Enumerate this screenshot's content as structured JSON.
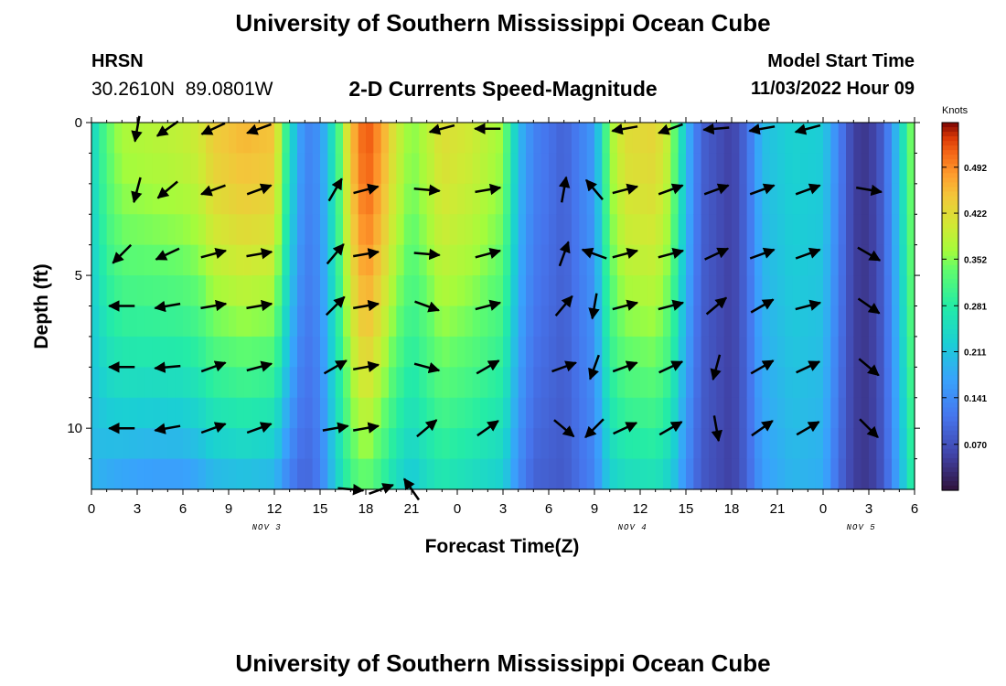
{
  "title": "University of Southern Mississippi Ocean Cube",
  "footer_title": "University of Southern Mississippi Ocean Cube",
  "station": {
    "id": "HRSN",
    "coords": "30.2610N  89.0801W"
  },
  "model": {
    "label": "Model Start Time",
    "start": "11/03/2022 Hour 09"
  },
  "chart_data": {
    "type": "heatmap",
    "title": "2-D Currents Speed-Magnitude",
    "xlabel": "Forecast Time(Z)",
    "ylabel": "Depth (ft)",
    "x_range_hours": [
      0,
      54
    ],
    "y_range_ft": [
      0,
      12
    ],
    "x_ticks": [
      "0",
      "3",
      "6",
      "9",
      "12",
      "15",
      "18",
      "21",
      "0",
      "3",
      "6",
      "9",
      "12",
      "15",
      "18",
      "21",
      "0",
      "3",
      "6"
    ],
    "y_ticks": [
      "0",
      "5",
      "10"
    ],
    "day_labels": [
      {
        "label": "NOV 3",
        "hour": 11.5
      },
      {
        "label": "NOV 4",
        "hour": 35.5
      },
      {
        "label": "NOV 5",
        "hour": 50.5
      }
    ],
    "colorbar": {
      "title": "Knots",
      "ticks": [
        "0.492",
        "0.422",
        "0.352",
        "0.281",
        "0.211",
        "0.141",
        "0.070"
      ],
      "min": 0.0,
      "max": 0.56
    },
    "speed_profile": [
      {
        "hour": 0,
        "surface": 0.23,
        "bottom": 0.19
      },
      {
        "hour": 1,
        "surface": 0.33,
        "bottom": 0.17
      },
      {
        "hour": 2,
        "surface": 0.37,
        "bottom": 0.16
      },
      {
        "hour": 4,
        "surface": 0.38,
        "bottom": 0.15
      },
      {
        "hour": 6,
        "surface": 0.39,
        "bottom": 0.15
      },
      {
        "hour": 7,
        "surface": 0.4,
        "bottom": 0.16
      },
      {
        "hour": 8,
        "surface": 0.44,
        "bottom": 0.18
      },
      {
        "hour": 10,
        "surface": 0.46,
        "bottom": 0.19
      },
      {
        "hour": 12,
        "surface": 0.45,
        "bottom": 0.18
      },
      {
        "hour": 13,
        "surface": 0.25,
        "bottom": 0.12
      },
      {
        "hour": 14,
        "surface": 0.13,
        "bottom": 0.09
      },
      {
        "hour": 15,
        "surface": 0.15,
        "bottom": 0.12
      },
      {
        "hour": 16,
        "surface": 0.28,
        "bottom": 0.22
      },
      {
        "hour": 17,
        "surface": 0.45,
        "bottom": 0.3
      },
      {
        "hour": 18,
        "surface": 0.53,
        "bottom": 0.33
      },
      {
        "hour": 19,
        "surface": 0.48,
        "bottom": 0.29
      },
      {
        "hour": 20,
        "surface": 0.4,
        "bottom": 0.24
      },
      {
        "hour": 21,
        "surface": 0.35,
        "bottom": 0.21
      },
      {
        "hour": 22,
        "surface": 0.38,
        "bottom": 0.24
      },
      {
        "hour": 23,
        "surface": 0.42,
        "bottom": 0.26
      },
      {
        "hour": 25,
        "surface": 0.4,
        "bottom": 0.24
      },
      {
        "hour": 27,
        "surface": 0.36,
        "bottom": 0.22
      },
      {
        "hour": 28,
        "surface": 0.2,
        "bottom": 0.14
      },
      {
        "hour": 29,
        "surface": 0.13,
        "bottom": 0.09
      },
      {
        "hour": 31,
        "surface": 0.09,
        "bottom": 0.08
      },
      {
        "hour": 33,
        "surface": 0.16,
        "bottom": 0.13
      },
      {
        "hour": 34,
        "surface": 0.36,
        "bottom": 0.22
      },
      {
        "hour": 35,
        "surface": 0.42,
        "bottom": 0.24
      },
      {
        "hour": 37,
        "surface": 0.43,
        "bottom": 0.25
      },
      {
        "hour": 38,
        "surface": 0.38,
        "bottom": 0.22
      },
      {
        "hour": 39,
        "surface": 0.2,
        "bottom": 0.14
      },
      {
        "hour": 40,
        "surface": 0.09,
        "bottom": 0.08
      },
      {
        "hour": 42,
        "surface": 0.05,
        "bottom": 0.05
      },
      {
        "hour": 43,
        "surface": 0.1,
        "bottom": 0.09
      },
      {
        "hour": 44,
        "surface": 0.2,
        "bottom": 0.16
      },
      {
        "hour": 46,
        "surface": 0.23,
        "bottom": 0.19
      },
      {
        "hour": 48,
        "surface": 0.22,
        "bottom": 0.18
      },
      {
        "hour": 49,
        "surface": 0.13,
        "bottom": 0.1
      },
      {
        "hour": 50,
        "surface": 0.05,
        "bottom": 0.05
      },
      {
        "hour": 51,
        "surface": 0.04,
        "bottom": 0.04
      },
      {
        "hour": 52,
        "surface": 0.09,
        "bottom": 0.08
      },
      {
        "hour": 53,
        "surface": 0.22,
        "bottom": 0.18
      },
      {
        "hour": 54,
        "surface": 0.38,
        "bottom": 0.3
      }
    ],
    "vectors": [
      {
        "hour": 3,
        "depth": 0.2,
        "angle": 260
      },
      {
        "hour": 5,
        "depth": 0.2,
        "angle": 215
      },
      {
        "hour": 8,
        "depth": 0.2,
        "angle": 205
      },
      {
        "hour": 11,
        "depth": 0.2,
        "angle": 200
      },
      {
        "hour": 23,
        "depth": 0.2,
        "angle": 195
      },
      {
        "hour": 26,
        "depth": 0.2,
        "angle": 180
      },
      {
        "hour": 35,
        "depth": 0.2,
        "angle": 190
      },
      {
        "hour": 38,
        "depth": 0.2,
        "angle": 200
      },
      {
        "hour": 41,
        "depth": 0.2,
        "angle": 185
      },
      {
        "hour": 44,
        "depth": 0.2,
        "angle": 190
      },
      {
        "hour": 47,
        "depth": 0.2,
        "angle": 195
      },
      {
        "hour": 3,
        "depth": 2.2,
        "angle": 255
      },
      {
        "hour": 5,
        "depth": 2.2,
        "angle": 220
      },
      {
        "hour": 8,
        "depth": 2.2,
        "angle": 200
      },
      {
        "hour": 11,
        "depth": 2.2,
        "angle": 20
      },
      {
        "hour": 16,
        "depth": 2.2,
        "angle": 60
      },
      {
        "hour": 18,
        "depth": 2.2,
        "angle": 15
      },
      {
        "hour": 22,
        "depth": 2.2,
        "angle": 355
      },
      {
        "hour": 26,
        "depth": 2.2,
        "angle": 10
      },
      {
        "hour": 31,
        "depth": 2.2,
        "angle": 80
      },
      {
        "hour": 33,
        "depth": 2.2,
        "angle": 130
      },
      {
        "hour": 35,
        "depth": 2.2,
        "angle": 15
      },
      {
        "hour": 38,
        "depth": 2.2,
        "angle": 20
      },
      {
        "hour": 41,
        "depth": 2.2,
        "angle": 20
      },
      {
        "hour": 44,
        "depth": 2.2,
        "angle": 20
      },
      {
        "hour": 47,
        "depth": 2.2,
        "angle": 20
      },
      {
        "hour": 51,
        "depth": 2.2,
        "angle": 350
      },
      {
        "hour": 2,
        "depth": 4.3,
        "angle": 225
      },
      {
        "hour": 5,
        "depth": 4.3,
        "angle": 205
      },
      {
        "hour": 8,
        "depth": 4.3,
        "angle": 15
      },
      {
        "hour": 11,
        "depth": 4.3,
        "angle": 10
      },
      {
        "hour": 16,
        "depth": 4.3,
        "angle": 50
      },
      {
        "hour": 18,
        "depth": 4.3,
        "angle": 10
      },
      {
        "hour": 22,
        "depth": 4.3,
        "angle": 355
      },
      {
        "hour": 26,
        "depth": 4.3,
        "angle": 15
      },
      {
        "hour": 31,
        "depth": 4.3,
        "angle": 70
      },
      {
        "hour": 33,
        "depth": 4.3,
        "angle": 160
      },
      {
        "hour": 35,
        "depth": 4.3,
        "angle": 15
      },
      {
        "hour": 38,
        "depth": 4.3,
        "angle": 15
      },
      {
        "hour": 41,
        "depth": 4.3,
        "angle": 25
      },
      {
        "hour": 44,
        "depth": 4.3,
        "angle": 20
      },
      {
        "hour": 47,
        "depth": 4.3,
        "angle": 20
      },
      {
        "hour": 51,
        "depth": 4.3,
        "angle": 330
      },
      {
        "hour": 2,
        "depth": 6.0,
        "angle": 180
      },
      {
        "hour": 5,
        "depth": 6.0,
        "angle": 190
      },
      {
        "hour": 8,
        "depth": 6.0,
        "angle": 10
      },
      {
        "hour": 11,
        "depth": 6.0,
        "angle": 10
      },
      {
        "hour": 16,
        "depth": 6.0,
        "angle": 45
      },
      {
        "hour": 18,
        "depth": 6.0,
        "angle": 10
      },
      {
        "hour": 22,
        "depth": 6.0,
        "angle": 340
      },
      {
        "hour": 26,
        "depth": 6.0,
        "angle": 15
      },
      {
        "hour": 31,
        "depth": 6.0,
        "angle": 50
      },
      {
        "hour": 33,
        "depth": 6.0,
        "angle": 260
      },
      {
        "hour": 35,
        "depth": 6.0,
        "angle": 15
      },
      {
        "hour": 38,
        "depth": 6.0,
        "angle": 15
      },
      {
        "hour": 41,
        "depth": 6.0,
        "angle": 40
      },
      {
        "hour": 44,
        "depth": 6.0,
        "angle": 30
      },
      {
        "hour": 47,
        "depth": 6.0,
        "angle": 15
      },
      {
        "hour": 51,
        "depth": 6.0,
        "angle": 325
      },
      {
        "hour": 2,
        "depth": 8.0,
        "angle": 180
      },
      {
        "hour": 5,
        "depth": 8.0,
        "angle": 185
      },
      {
        "hour": 8,
        "depth": 8.0,
        "angle": 20
      },
      {
        "hour": 11,
        "depth": 8.0,
        "angle": 15
      },
      {
        "hour": 16,
        "depth": 8.0,
        "angle": 30
      },
      {
        "hour": 18,
        "depth": 8.0,
        "angle": 10
      },
      {
        "hour": 22,
        "depth": 8.0,
        "angle": 345
      },
      {
        "hour": 26,
        "depth": 8.0,
        "angle": 30
      },
      {
        "hour": 31,
        "depth": 8.0,
        "angle": 20
      },
      {
        "hour": 33,
        "depth": 8.0,
        "angle": 250
      },
      {
        "hour": 35,
        "depth": 8.0,
        "angle": 20
      },
      {
        "hour": 38,
        "depth": 8.0,
        "angle": 25
      },
      {
        "hour": 41,
        "depth": 8.0,
        "angle": 255
      },
      {
        "hour": 44,
        "depth": 8.0,
        "angle": 30
      },
      {
        "hour": 47,
        "depth": 8.0,
        "angle": 25
      },
      {
        "hour": 51,
        "depth": 8.0,
        "angle": 320
      },
      {
        "hour": 2,
        "depth": 10.0,
        "angle": 180
      },
      {
        "hour": 5,
        "depth": 10.0,
        "angle": 190
      },
      {
        "hour": 8,
        "depth": 10.0,
        "angle": 20
      },
      {
        "hour": 11,
        "depth": 10.0,
        "angle": 20
      },
      {
        "hour": 16,
        "depth": 10.0,
        "angle": 10
      },
      {
        "hour": 18,
        "depth": 10.0,
        "angle": 10
      },
      {
        "hour": 22,
        "depth": 10.0,
        "angle": 40
      },
      {
        "hour": 26,
        "depth": 10.0,
        "angle": 35
      },
      {
        "hour": 31,
        "depth": 10.0,
        "angle": 320
      },
      {
        "hour": 33,
        "depth": 10.0,
        "angle": 225
      },
      {
        "hour": 35,
        "depth": 10.0,
        "angle": 25
      },
      {
        "hour": 38,
        "depth": 10.0,
        "angle": 30
      },
      {
        "hour": 41,
        "depth": 10.0,
        "angle": 280
      },
      {
        "hour": 44,
        "depth": 10.0,
        "angle": 35
      },
      {
        "hour": 47,
        "depth": 10.0,
        "angle": 30
      },
      {
        "hour": 51,
        "depth": 10.0,
        "angle": 315
      },
      {
        "hour": 17,
        "depth": 12.0,
        "angle": 355
      },
      {
        "hour": 19,
        "depth": 12.0,
        "angle": 20
      },
      {
        "hour": 21,
        "depth": 12.0,
        "angle": 125
      }
    ]
  }
}
